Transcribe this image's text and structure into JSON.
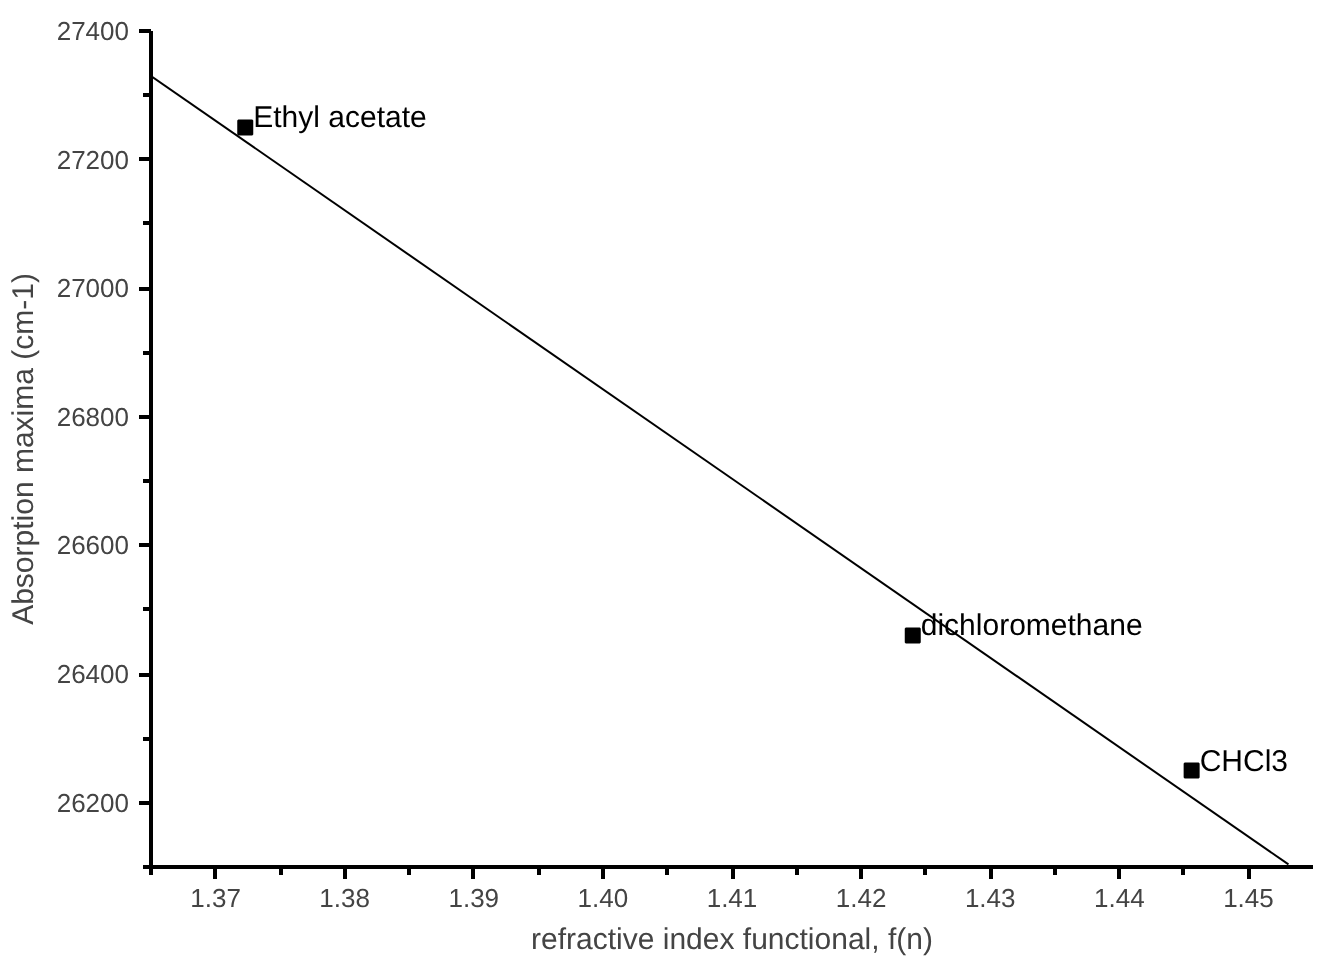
{
  "chart_data": {
    "type": "scatter",
    "xlabel": "refractive index functional, f(n)",
    "ylabel": "Absorption maxima (cm-1)",
    "xlim": [
      1.365,
      1.455
    ],
    "xticks": [
      1.37,
      1.38,
      1.39,
      {
        "value": 1.4,
        "label": "1.40"
      },
      1.41,
      1.42,
      1.43,
      1.44,
      1.45
    ],
    "ylim": [
      26100,
      27400
    ],
    "yticks": [
      26200,
      26400,
      26600,
      26800,
      27000,
      27200,
      27400
    ],
    "grid": false,
    "marker": "square",
    "series": [
      {
        "color": "#000000",
        "x": [
          1.3723,
          1.424,
          1.4456
        ],
        "values": [
          27250,
          26460,
          26250
        ]
      },
      {
        "type": "line",
        "color": "#000000",
        "x": [
          1.365,
          1.4531
        ],
        "values": [
          27330,
          26104
        ],
        "marker": "none"
      }
    ],
    "annotations": [
      {
        "text": "Ethyl acetate",
        "x": 1.3723,
        "y": 27250
      },
      {
        "text": "dichloromethane",
        "x": 1.424,
        "y": 26460
      },
      {
        "text": "CHCl3",
        "x": 1.4456,
        "y": 26250
      }
    ]
  }
}
